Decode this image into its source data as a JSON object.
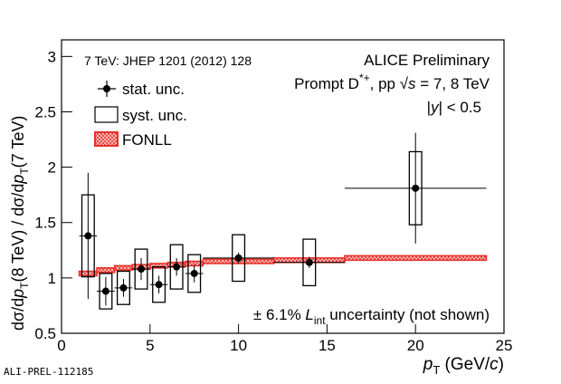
{
  "chart_data": {
    "type": "errorbar",
    "xlim": [
      0,
      25
    ],
    "ylim": [
      0.5,
      3.15
    ],
    "xticks": [
      0,
      5,
      10,
      15,
      20,
      25
    ],
    "yticks": [
      0.5,
      1,
      1.5,
      2,
      2.5,
      3
    ],
    "x_label_parts": [
      "p",
      "T",
      " (GeV/",
      "c",
      ")"
    ],
    "y_label_parts": [
      "dσ/d",
      "p",
      "T",
      "(8 TeV) / dσ/d",
      "p",
      "T",
      "(7 TeV)"
    ],
    "annotations": {
      "reference": "7 TeV: JHEP 1201 (2012) 128",
      "experiment": "ALICE Preliminary",
      "process_parts": [
        "Prompt D",
        "*+",
        ", pp √",
        "s",
        " = 7, 8 TeV"
      ],
      "rapidity_parts": [
        "|",
        "y",
        "| < 0.5"
      ],
      "lumi_parts": [
        "± 6.1% ",
        "L",
        "int",
        " uncertainty (not shown)"
      ],
      "watermark": "ALI-PREL-112185"
    },
    "series": [
      {
        "name": "stat. unc.",
        "color": "#000000",
        "x": [
          1.5,
          2.5,
          3.5,
          4.5,
          5.5,
          6.5,
          7.5,
          10,
          14,
          20
        ],
        "xerr": [
          0.5,
          0.5,
          0.5,
          0.5,
          0.5,
          0.5,
          0.5,
          2,
          2,
          4
        ],
        "values": [
          1.38,
          0.88,
          0.91,
          1.08,
          0.94,
          1.1,
          1.04,
          1.18,
          1.14,
          1.81
        ],
        "yerr": [
          0.57,
          0.13,
          0.08,
          0.1,
          0.08,
          0.08,
          0.08,
          0.05,
          0.05,
          0.5
        ]
      },
      {
        "name": "syst. unc.",
        "color": "#000000",
        "yerr": [
          0.37,
          0.16,
          0.15,
          0.18,
          0.16,
          0.2,
          0.17,
          0.21,
          0.21,
          0.33
        ]
      },
      {
        "name": "FONLL",
        "color": "#e8302a",
        "bins": [
          1,
          2,
          3,
          4,
          5,
          6,
          7,
          8,
          12,
          16,
          24
        ],
        "values": [
          1.04,
          1.07,
          1.09,
          1.1,
          1.11,
          1.12,
          1.13,
          1.15,
          1.16,
          1.18
        ],
        "yerr": [
          0.02,
          0.02,
          0.02,
          0.02,
          0.02,
          0.02,
          0.02,
          0.02,
          0.02,
          0.02
        ]
      }
    ]
  }
}
